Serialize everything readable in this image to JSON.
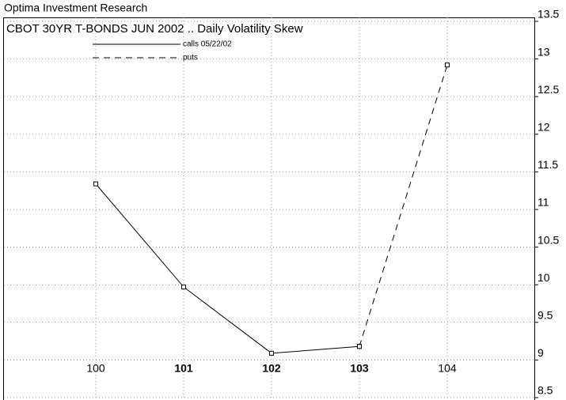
{
  "chart_data": {
    "type": "line",
    "source": "Optima Investment Research",
    "title": "CBOT 30YR T-BONDS JUN 2002 .. Daily Volatility Skew",
    "categories": [
      "100",
      "101",
      "102",
      "103",
      "104"
    ],
    "series": [
      {
        "name": "calls 05/22/02",
        "color": "#000000",
        "dash": false,
        "values": [
          11.34,
          9.97,
          9.09,
          9.18,
          null
        ]
      },
      {
        "name": "puts",
        "color": "#000000",
        "dash": true,
        "values": [
          null,
          null,
          null,
          9.18,
          12.92
        ]
      }
    ],
    "ylim": [
      8.5,
      13.5
    ],
    "yticks": [
      8.5,
      9,
      9.5,
      10,
      10.5,
      11,
      11.5,
      12,
      12.5,
      13,
      13.5
    ],
    "grid": true
  }
}
